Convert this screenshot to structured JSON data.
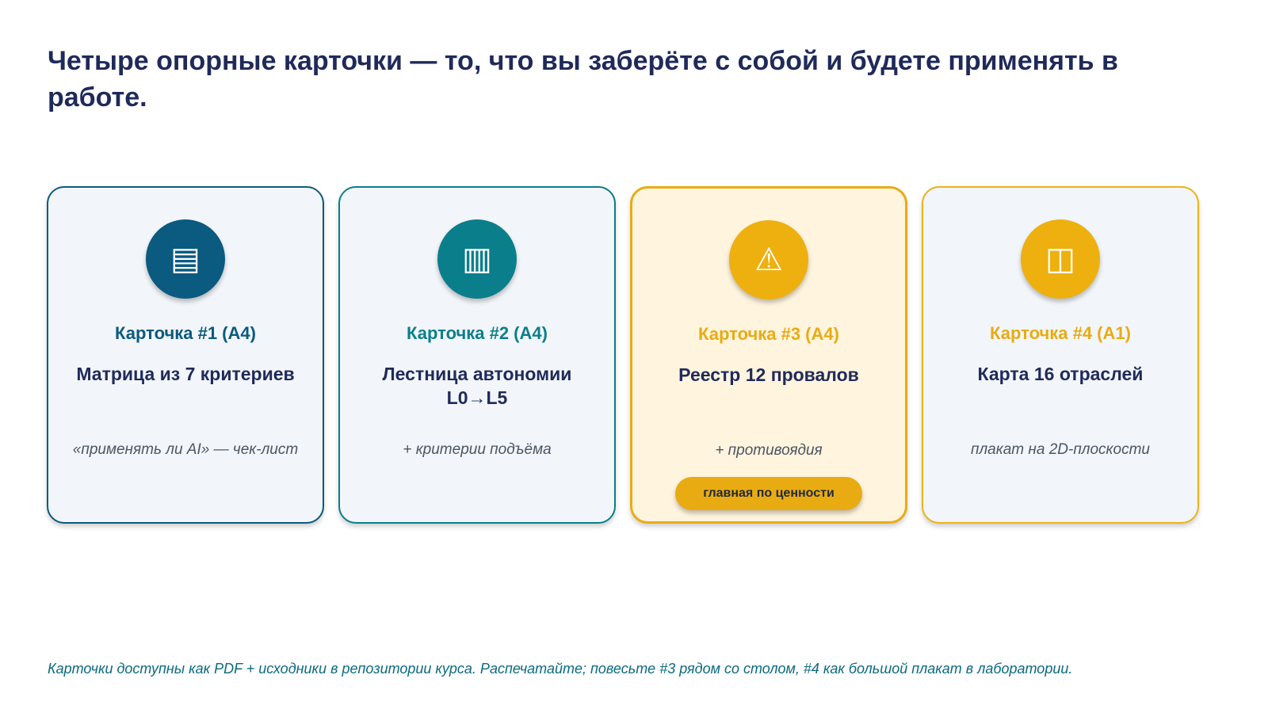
{
  "slide": {
    "title": "Четыре опорные карточки — то, что вы заберёте с собой и будете применять в работе.",
    "footnote": "Карточки доступны как PDF + исходники в репозитории курса. Распечатайте; повесьте #3 рядом со столом, #4 как большой плакат в лаборатории."
  },
  "cards": [
    {
      "label": "Карточка #1 (A4)",
      "name": "Матрица из 7 критериев",
      "note": "«применять ли AI» — чек-лист",
      "icon": "▤",
      "icon_name": "list-icon",
      "accent": "#0b5a7f",
      "label_color": "#0b5a7f"
    },
    {
      "label": "Карточка #2 (A4)",
      "name": "Лестница автономии L0→L5",
      "note": "+ критерии подъёма",
      "icon": "▥",
      "icon_name": "ladder-icon",
      "accent": "#0b7e8c",
      "label_color": "#0b7e8c"
    },
    {
      "label": "Карточка #3 (A4)",
      "name": "Реестр 12 провалов",
      "note": "+ противоядия",
      "icon": "⚠",
      "icon_name": "warning-icon",
      "accent": "#eeb00f",
      "label_color": "#e9ab12",
      "badge": "главная по ценности"
    },
    {
      "label": "Карточка #4 (A1)",
      "name": "Карта 16 отраслей",
      "note": "плакат на 2D-плоскости",
      "icon": "◫",
      "icon_name": "map-icon",
      "accent": "#eeb00f",
      "label_color": "#e9ab12"
    }
  ]
}
